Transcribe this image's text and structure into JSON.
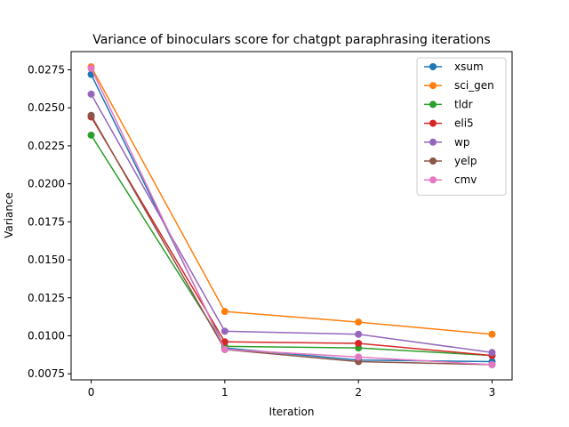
{
  "chart_data": {
    "type": "line",
    "title": "Variance of binoculars score for chatgpt paraphrasing iterations",
    "xlabel": "Iteration",
    "ylabel": "Variance",
    "x": [
      0,
      1,
      2,
      3
    ],
    "xticks": [
      "0",
      "1",
      "2",
      "3"
    ],
    "yticks": [
      "0.0075",
      "0.0100",
      "0.0125",
      "0.0150",
      "0.0175",
      "0.0200",
      "0.0225",
      "0.0250",
      "0.0275"
    ],
    "ylim": [
      0.0071,
      0.0287
    ],
    "xlim": [
      -0.15,
      3.15
    ],
    "grid": false,
    "legend_position": "top-right",
    "series": [
      {
        "name": "xsum",
        "color": "#1f77b4",
        "values": [
          0.0272,
          0.0092,
          0.0084,
          0.0083
        ]
      },
      {
        "name": "sci_gen",
        "color": "#ff7f0e",
        "values": [
          0.0277,
          0.0116,
          0.0109,
          0.0101
        ]
      },
      {
        "name": "tldr",
        "color": "#2ca02c",
        "values": [
          0.0232,
          0.0093,
          0.0092,
          0.0087
        ]
      },
      {
        "name": "eli5",
        "color": "#d62728",
        "values": [
          0.0244,
          0.0096,
          0.0095,
          0.0087
        ]
      },
      {
        "name": "wp",
        "color": "#9467bd",
        "values": [
          0.0259,
          0.0103,
          0.0101,
          0.0089
        ]
      },
      {
        "name": "yelp",
        "color": "#8c564b",
        "values": [
          0.0245,
          0.0091,
          0.0083,
          0.0081
        ]
      },
      {
        "name": "cmv",
        "color": "#e377c2",
        "values": [
          0.0276,
          0.0091,
          0.0086,
          0.0081
        ]
      }
    ]
  }
}
